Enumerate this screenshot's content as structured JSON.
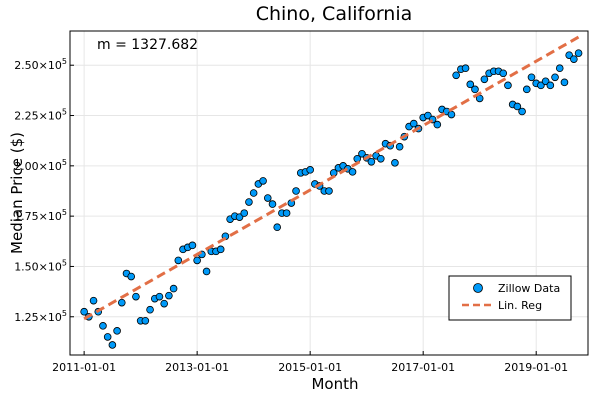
{
  "chart_data": {
    "type": "scatter",
    "title": "Chino, California",
    "xlabel": "Month",
    "ylabel": "Median Price ($)",
    "annotation": "m = 1327.682",
    "colors": {
      "points": "#009af9",
      "line": "#e26f46"
    },
    "xlim": [
      -3,
      107
    ],
    "ylim": [
      106000,
      267000
    ],
    "x_ticks": [
      {
        "value": 0,
        "label": "2011-01-01"
      },
      {
        "value": 24,
        "label": "2013-01-01"
      },
      {
        "value": 48,
        "label": "2015-01-01"
      },
      {
        "value": 72,
        "label": "2017-01-01"
      },
      {
        "value": 96,
        "label": "2019-01-01"
      }
    ],
    "y_ticks": [
      {
        "value": 125000,
        "mantissa": "1.25",
        "exponent": "5"
      },
      {
        "value": 150000,
        "mantissa": "1.50",
        "exponent": "5"
      },
      {
        "value": 175000,
        "mantissa": "1.75",
        "exponent": "5"
      },
      {
        "value": 200000,
        "mantissa": "2.00",
        "exponent": "5"
      },
      {
        "value": 225000,
        "mantissa": "2.25",
        "exponent": "5"
      },
      {
        "value": 250000,
        "mantissa": "2.50",
        "exponent": "5"
      }
    ],
    "series": [
      {
        "name": "Zillow Data",
        "kind": "scatter",
        "x": [
          0,
          1,
          2,
          3,
          4,
          5,
          6,
          7,
          8,
          9,
          10,
          11,
          12,
          13,
          14,
          15,
          16,
          17,
          18,
          19,
          20,
          21,
          22,
          23,
          24,
          25,
          26,
          27,
          28,
          29,
          30,
          31,
          32,
          33,
          34,
          35,
          36,
          37,
          38,
          39,
          40,
          41,
          42,
          43,
          44,
          45,
          46,
          47,
          48,
          49,
          50,
          51,
          52,
          53,
          54,
          55,
          56,
          57,
          58,
          59,
          60,
          61,
          62,
          63,
          64,
          65,
          66,
          67,
          68,
          69,
          70,
          71,
          72,
          73,
          74,
          75,
          76,
          77,
          78,
          79,
          80,
          81,
          82,
          83,
          84,
          85,
          86,
          87,
          88,
          89,
          90,
          91,
          92,
          93,
          94,
          95,
          96,
          97,
          98,
          99,
          100,
          101,
          102,
          103,
          104,
          105
        ],
        "y": [
          127500,
          125000,
          133000,
          127500,
          120500,
          115000,
          111000,
          118000,
          132000,
          146500,
          145000,
          135000,
          123000,
          123000,
          128500,
          134000,
          135000,
          131500,
          135500,
          139000,
          153000,
          158500,
          159500,
          160500,
          153000,
          156000,
          147500,
          157500,
          157500,
          158500,
          165000,
          173500,
          175000,
          174500,
          176500,
          182000,
          186500,
          191000,
          192500,
          184000,
          181000,
          169500,
          176500,
          176500,
          181500,
          187500,
          196500,
          197000,
          198000,
          191000,
          190000,
          187500,
          187500,
          196500,
          199000,
          200000,
          198500,
          197000,
          203500,
          206000,
          204000,
          202000,
          205000,
          203500,
          211000,
          210000,
          201500,
          209500,
          214500,
          219500,
          221000,
          218500,
          224000,
          225000,
          223000,
          220500,
          228000,
          227000,
          225500,
          245000,
          248000,
          248500,
          240500,
          238000,
          233500,
          243000,
          246000,
          247000,
          247000,
          246000,
          240000,
          230500,
          229500,
          227000,
          238000,
          244000,
          241000,
          240000,
          242000,
          240000,
          244000,
          248500,
          241500,
          255000,
          253000,
          256000
        ]
      },
      {
        "name": "Lin. Reg",
        "kind": "line",
        "x": [
          0,
          105
        ],
        "y": [
          124000,
          264000
        ]
      }
    ],
    "legend": {
      "position": "bottom-right",
      "entries": [
        "Zillow Data",
        "Lin. Reg"
      ]
    }
  }
}
